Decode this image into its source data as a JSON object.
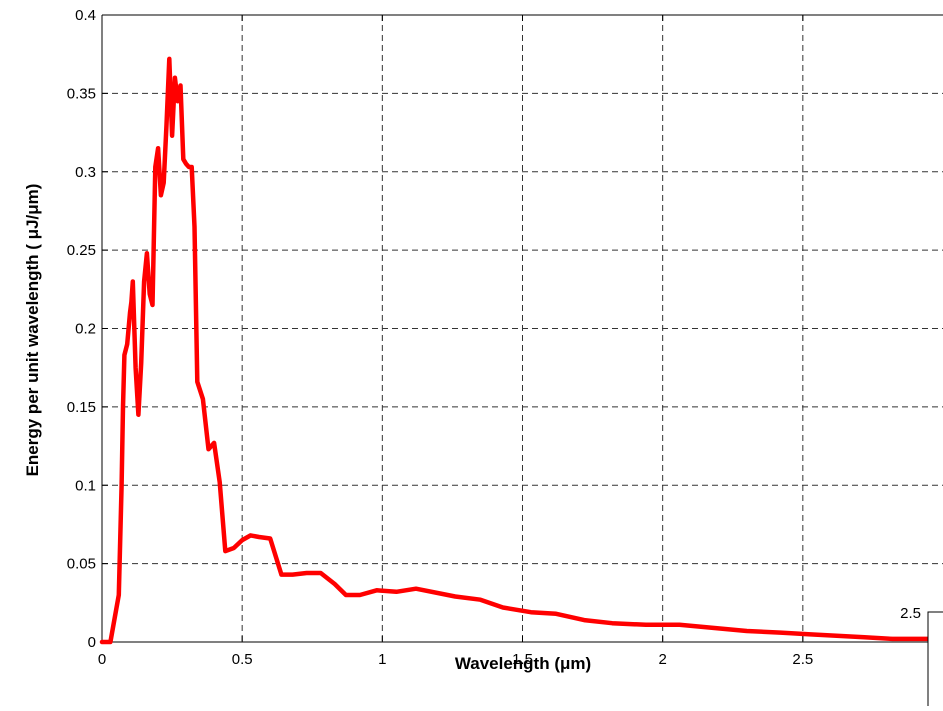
{
  "chart_data": {
    "type": "line",
    "title": "",
    "xlabel": "Wavelength (μm)",
    "ylabel": "Energy per unit wavelength ( μJ/μm)",
    "xlim": [
      0,
      3.0
    ],
    "ylim": [
      0,
      0.4
    ],
    "xticks": [
      0,
      0.5,
      1,
      1.5,
      2,
      2.5
    ],
    "xtick_labels": [
      "0",
      "0.5",
      "1",
      "1.5",
      "2",
      "2.5"
    ],
    "yticks": [
      0,
      0.05,
      0.1,
      0.15,
      0.2,
      0.25,
      0.3,
      0.35,
      0.4
    ],
    "ytick_labels": [
      "0",
      "0.05",
      "0.1",
      "0.15",
      "0.2",
      "0.25",
      "0.3",
      "0.35",
      "0.4"
    ],
    "grid": true,
    "legend": "none",
    "series": [
      {
        "color": "#ff0000",
        "x": [
          0.0,
          0.03,
          0.04,
          0.05,
          0.06,
          0.07,
          0.075,
          0.08,
          0.09,
          0.1,
          0.105,
          0.11,
          0.12,
          0.13,
          0.14,
          0.15,
          0.16,
          0.17,
          0.18,
          0.19,
          0.2,
          0.21,
          0.22,
          0.23,
          0.24,
          0.25,
          0.26,
          0.27,
          0.28,
          0.29,
          0.3,
          0.31,
          0.32,
          0.33,
          0.34,
          0.36,
          0.38,
          0.4,
          0.42,
          0.44,
          0.47,
          0.5,
          0.53,
          0.56,
          0.6,
          0.64,
          0.68,
          0.73,
          0.78,
          0.83,
          0.87,
          0.92,
          0.98,
          1.05,
          1.12,
          1.26,
          1.35,
          1.43,
          1.53,
          1.62,
          1.72,
          1.82,
          1.94,
          2.06,
          2.18,
          2.3,
          2.42,
          2.52,
          2.62,
          2.72,
          2.82,
          2.93,
          3.0
        ],
        "y": [
          0.0,
          0.0,
          0.01,
          0.02,
          0.03,
          0.1,
          0.15,
          0.183,
          0.19,
          0.21,
          0.217,
          0.23,
          0.175,
          0.145,
          0.178,
          0.23,
          0.248,
          0.222,
          0.215,
          0.303,
          0.315,
          0.285,
          0.293,
          0.33,
          0.372,
          0.323,
          0.36,
          0.345,
          0.355,
          0.308,
          0.305,
          0.303,
          0.303,
          0.265,
          0.166,
          0.155,
          0.123,
          0.127,
          0.102,
          0.058,
          0.06,
          0.065,
          0.068,
          0.067,
          0.066,
          0.043,
          0.043,
          0.044,
          0.044,
          0.037,
          0.03,
          0.03,
          0.033,
          0.032,
          0.034,
          0.029,
          0.027,
          0.022,
          0.019,
          0.018,
          0.014,
          0.012,
          0.011,
          0.011,
          0.009,
          0.007,
          0.006,
          0.005,
          0.004,
          0.003,
          0.002,
          0.002,
          0.002
        ]
      }
    ],
    "inset_label": "2.5"
  }
}
